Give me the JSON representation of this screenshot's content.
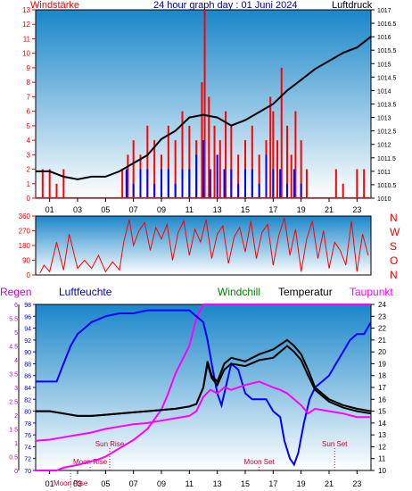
{
  "colors": {
    "frame": "#000000",
    "grad_top": "#1a86c9",
    "grad_bottom": "#ffffff",
    "red": "#ff0000",
    "blue": "#0000ff",
    "black": "#000000",
    "magenta": "#ff00ff",
    "darkred": "#cc0033",
    "green": "#008000",
    "navy": "#0000aa"
  },
  "chart_data": [
    {
      "type": "line",
      "title": "24 hour graph day : 01 Juni 2024",
      "left_label": "Windstärke",
      "right_label": "Luftdruck",
      "x_tick_labels": [
        "01",
        "03",
        "05",
        "07",
        "09",
        "11",
        "13",
        "15",
        "17",
        "19",
        "21",
        "23"
      ],
      "left_ticks": [
        "0",
        "1",
        "2",
        "3",
        "4",
        "5",
        "6",
        "7",
        "8",
        "9",
        "10",
        "11",
        "12",
        "13"
      ],
      "right_ticks": [
        "1010",
        "1010.5",
        "1011",
        "1011.5",
        "1012",
        "1012.5",
        "1013",
        "1013.5",
        "1014",
        "1014.5",
        "1015",
        "1015.5",
        "1016",
        "1016.5",
        "1017"
      ],
      "ylim_left": [
        0,
        13
      ],
      "ylim_right": [
        1010,
        1017
      ],
      "series": [
        {
          "name": "Luftdruck",
          "axis": "right",
          "x": [
            0,
            1,
            2,
            3,
            4,
            5,
            6,
            7,
            8,
            9,
            10,
            11,
            12,
            13,
            14,
            15,
            16,
            17,
            18,
            19,
            20,
            21,
            22,
            23,
            24
          ],
          "y": [
            1011.0,
            1011.0,
            1010.8,
            1010.7,
            1010.8,
            1010.8,
            1011.0,
            1011.3,
            1011.6,
            1012.2,
            1012.5,
            1013.0,
            1013.1,
            1013.0,
            1012.7,
            1012.9,
            1013.2,
            1013.5,
            1014.0,
            1014.4,
            1014.8,
            1015.1,
            1015.4,
            1015.6,
            1016.0
          ]
        },
        {
          "name": "Windstärke",
          "axis": "left",
          "x": [
            6.2,
            6.6,
            7.0,
            7.5,
            8.0,
            8.5,
            9.0,
            9.5,
            10.0,
            10.5,
            11.0,
            11.5,
            11.9,
            12.1,
            12.4,
            12.8,
            13.2,
            13.6,
            14.0,
            14.5,
            15.0,
            15.5,
            16.0,
            16.5,
            16.8,
            17.0,
            17.3,
            17.6,
            18.0,
            18.3,
            18.6,
            19.0,
            19.4
          ],
          "y": [
            2,
            3,
            4,
            3,
            5,
            4,
            3,
            5,
            4,
            6,
            5,
            4,
            8,
            13,
            7,
            5,
            4,
            6,
            5,
            3,
            4,
            5,
            3,
            4,
            7,
            6,
            4,
            9,
            5,
            3,
            6,
            4,
            2
          ]
        },
        {
          "name": "Windstärke (spikes)",
          "axis": "left",
          "x": [
            0.5,
            1.0,
            1.5,
            2.0,
            21.5,
            22.0,
            23.0,
            23.5
          ],
          "y": [
            2,
            2,
            1,
            2,
            2,
            1,
            2,
            2
          ]
        },
        {
          "name": "Windstärke (blue)",
          "axis": "left",
          "x": [
            6.5,
            7.0,
            7.5,
            8.0,
            8.5,
            9.0,
            9.5,
            10.0,
            10.5,
            11.0,
            11.5,
            12.0,
            12.5,
            13.0,
            13.5,
            14.0,
            14.5,
            15.0,
            15.5,
            16.0,
            16.5,
            17.0,
            17.5,
            18.0,
            18.5,
            19.0
          ],
          "y": [
            2,
            1,
            2,
            2,
            1,
            2,
            2,
            1,
            2,
            2,
            3,
            4,
            2,
            3,
            2,
            2,
            1,
            2,
            2,
            1,
            3,
            2,
            2,
            1,
            2,
            1
          ]
        }
      ]
    },
    {
      "type": "line",
      "left_ticks": [
        "0",
        "90",
        "180",
        "270",
        "360"
      ],
      "right_labels": [
        "N",
        "W",
        "S",
        "O",
        "N"
      ],
      "ylim": [
        0,
        360
      ],
      "series": [
        {
          "name": "Windrichtung",
          "x": [
            0.3,
            0.6,
            1.0,
            1.5,
            2.0,
            2.4,
            3.0,
            3.5,
            4.0,
            4.5,
            5.0,
            5.5,
            6.0,
            6.3,
            6.7,
            7.0,
            7.4,
            7.8,
            8.2,
            8.6,
            9.0,
            9.4,
            9.8,
            10.2,
            10.6,
            11.0,
            11.4,
            11.8,
            12.2,
            12.6,
            13.0,
            13.4,
            13.8,
            14.2,
            14.6,
            15.0,
            15.4,
            15.8,
            16.2,
            16.6,
            17.0,
            17.4,
            17.8,
            18.2,
            18.6,
            19.0,
            19.4,
            19.8,
            20.2,
            20.6,
            21.0,
            21.4,
            21.8,
            22.2,
            22.6,
            23.0,
            23.4,
            23.8
          ],
          "y": [
            10,
            60,
            20,
            200,
            30,
            250,
            40,
            90,
            40,
            120,
            20,
            80,
            30,
            200,
            340,
            180,
            270,
            320,
            150,
            290,
            220,
            310,
            90,
            260,
            330,
            120,
            280,
            200,
            340,
            100,
            250,
            300,
            70,
            230,
            290,
            140,
            330,
            100,
            260,
            310,
            60,
            240,
            350,
            120,
            280,
            20,
            220,
            330,
            100,
            270,
            40,
            200,
            150,
            60,
            330,
            20,
            250,
            120
          ]
        }
      ]
    },
    {
      "type": "line",
      "header_labels": {
        "regen": "Regen",
        "luftfeuchte": "Luftfeuchte",
        "windchill": "Windchill",
        "temperatur": "Temperatur",
        "taupunkt": "Taupunkt"
      },
      "left_outer_ticks": [
        "0",
        "0.5",
        "1",
        "1.5",
        "2",
        "2.5",
        "3",
        "3.5",
        "4",
        "4.5",
        "5",
        "5.5",
        "6"
      ],
      "left_inner_ticks": [
        "70",
        "72",
        "74",
        "76",
        "78",
        "80",
        "82",
        "84",
        "86",
        "88",
        "90",
        "92",
        "94",
        "96",
        "98"
      ],
      "right_ticks": [
        "10",
        "11",
        "12",
        "13",
        "14",
        "15",
        "16",
        "17",
        "18",
        "19",
        "20",
        "21",
        "22",
        "23",
        "24"
      ],
      "x_tick_labels": [
        "01",
        "03",
        "05",
        "07",
        "09",
        "11",
        "13",
        "15",
        "17",
        "19",
        "21",
        "23"
      ],
      "annotations": [
        {
          "text": "Sun Rise",
          "x": 5.3
        },
        {
          "text": "Moon Rise",
          "x": 3.9
        },
        {
          "text": "Moon Set",
          "x": 16.0
        },
        {
          "text": "Sun Set",
          "x": 21.4
        },
        {
          "text": "Moon Rise",
          "x": 2.5
        }
      ],
      "series": [
        {
          "name": "Luftfeuchte",
          "axis": "humidity",
          "x": [
            0,
            1,
            1.5,
            2,
            2.5,
            3,
            3.5,
            4,
            5,
            6,
            7,
            8,
            9,
            10,
            11,
            11.5,
            12,
            12.3,
            12.6,
            13,
            13.3,
            13.6,
            14,
            14.5,
            15,
            15.5,
            16,
            16.5,
            17,
            17.5,
            17.8,
            18.2,
            18.5,
            18.8,
            19.2,
            19.6,
            20,
            20.5,
            21,
            21.5,
            22,
            22.5,
            23,
            23.5,
            24
          ],
          "y": [
            85,
            85,
            85,
            88,
            91,
            93,
            94,
            95,
            96,
            96.5,
            96.5,
            97,
            97,
            97,
            97,
            96,
            95,
            92,
            88,
            83,
            81,
            84,
            88,
            87,
            83,
            82,
            82,
            82,
            80,
            79,
            75,
            72,
            71,
            73,
            78,
            82,
            84,
            85,
            86,
            88,
            90,
            92,
            93,
            93,
            95
          ]
        },
        {
          "name": "Temperatur",
          "axis": "temp",
          "x": [
            0,
            1,
            2,
            3,
            4,
            5,
            6,
            7,
            8,
            9,
            10,
            11,
            11.5,
            12,
            12.3,
            12.6,
            13,
            13.5,
            14,
            15,
            16,
            17,
            18,
            18.5,
            19,
            19.5,
            20,
            21,
            22,
            23,
            24
          ],
          "y": [
            15.0,
            15.0,
            14.8,
            14.6,
            14.6,
            14.7,
            14.8,
            14.9,
            15.0,
            15.1,
            15.2,
            15.4,
            15.6,
            17.0,
            19.2,
            18.0,
            17.5,
            19.0,
            19.5,
            19.2,
            19.8,
            20.2,
            21.0,
            20.5,
            19.8,
            18.5,
            17.0,
            16.0,
            15.5,
            15.2,
            15.0
          ]
        },
        {
          "name": "Windchill",
          "axis": "temp",
          "x": [
            0,
            1,
            2,
            3,
            4,
            5,
            6,
            7,
            8,
            9,
            10,
            11,
            11.5,
            12,
            12.3,
            12.6,
            13,
            13.5,
            14,
            15,
            16,
            17,
            18,
            18.5,
            19,
            19.5,
            20,
            21,
            22,
            23,
            24
          ],
          "y": [
            15.0,
            15.0,
            14.8,
            14.6,
            14.6,
            14.7,
            14.8,
            14.9,
            15.0,
            15.1,
            15.2,
            15.4,
            15.6,
            17.0,
            19.0,
            17.8,
            17.2,
            18.5,
            19.0,
            18.8,
            19.3,
            19.5,
            20.5,
            20.0,
            19.3,
            18.0,
            16.8,
            15.8,
            15.3,
            15.0,
            14.8
          ]
        },
        {
          "name": "Taupunkt",
          "axis": "temp",
          "x": [
            0,
            1,
            2,
            3,
            4,
            5,
            6,
            7,
            8,
            9,
            10,
            11,
            11.5,
            12,
            12.5,
            13,
            13.5,
            14,
            15,
            16,
            17,
            17.5,
            18,
            18.5,
            19,
            19.5,
            20,
            21,
            22,
            23,
            24
          ],
          "y": [
            12.5,
            12.6,
            12.8,
            13.0,
            13.2,
            13.5,
            13.7,
            13.9,
            14.0,
            14.2,
            14.4,
            14.6,
            15.0,
            16.2,
            16.8,
            16.5,
            17.0,
            16.8,
            17.2,
            17.5,
            17.0,
            16.8,
            16.5,
            16.0,
            15.5,
            14.8,
            15.2,
            15.0,
            14.8,
            14.5,
            14.5
          ]
        },
        {
          "name": "Regen",
          "axis": "rain",
          "x": [
            0,
            1.5,
            2,
            3,
            4.5,
            5,
            6,
            7,
            8,
            9,
            9.5,
            10,
            11,
            11.5,
            12,
            13,
            16,
            20,
            23,
            24
          ],
          "y": [
            0,
            0,
            0.1,
            0.2,
            0.4,
            0.5,
            0.8,
            1.1,
            1.5,
            2.2,
            2.8,
            3.5,
            4.5,
            5.5,
            6,
            6,
            6,
            6,
            6,
            6
          ]
        }
      ]
    }
  ]
}
